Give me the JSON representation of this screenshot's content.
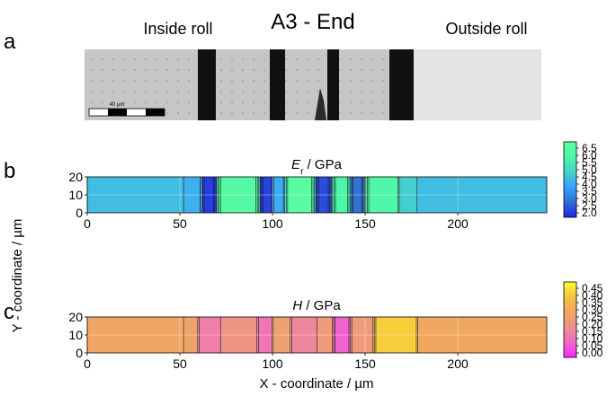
{
  "figure": {
    "title": "A3 - End",
    "left_label": "Inside roll",
    "right_label": "Outside roll",
    "panel_letters": [
      "a",
      "b",
      "c"
    ],
    "scale_bar_label": "40 µm",
    "y_axis_label": "Y - coordinate / µm",
    "x_axis_label": "X - coordinate / µm"
  },
  "chart_data": [
    {
      "type": "heatmap",
      "panel": "b",
      "title_symbol": "E",
      "title_subscript": "r",
      "title_unit": " / GPa",
      "x_ticks": [
        0,
        50,
        100,
        150,
        200
      ],
      "y_ticks": [
        0,
        10,
        20
      ],
      "xlim": [
        0,
        248
      ],
      "ylim": [
        0,
        20
      ],
      "grid": true,
      "colorbar_ticks": [
        "6.5",
        "6.0",
        "5.5",
        "5.0",
        "4.5",
        "4.0",
        "3.5",
        "3.0",
        "2.5",
        "2.0"
      ],
      "colorbar_range": [
        2.0,
        6.5
      ],
      "colormap": [
        "#2222ee",
        "#2f6fd0",
        "#3aa0ff",
        "#45d4c8",
        "#4cf5a8",
        "#60ffa0"
      ],
      "bands": [
        {
          "x": [
            0,
            52
          ],
          "value": 4.3
        },
        {
          "x": [
            52,
            62
          ],
          "value": 4.1
        },
        {
          "x": [
            62,
            70
          ],
          "value": 2.3
        },
        {
          "x": [
            70,
            93
          ],
          "value": 6.0
        },
        {
          "x": [
            93,
            100
          ],
          "value": 2.4
        },
        {
          "x": [
            100,
            107
          ],
          "value": 4.0
        },
        {
          "x": [
            107,
            123
          ],
          "value": 6.2
        },
        {
          "x": [
            123,
            132
          ],
          "value": 2.5
        },
        {
          "x": [
            132,
            142
          ],
          "value": 5.6
        },
        {
          "x": [
            142,
            150
          ],
          "value": 3.0
        },
        {
          "x": [
            150,
            168
          ],
          "value": 5.8
        },
        {
          "x": [
            168,
            178
          ],
          "value": 4.6
        },
        {
          "x": [
            178,
            248
          ],
          "value": 4.3
        }
      ]
    },
    {
      "type": "heatmap",
      "panel": "c",
      "title_symbol": "H",
      "title_subscript": "",
      "title_unit": " / GPa",
      "x_ticks": [
        0,
        50,
        100,
        150,
        200
      ],
      "y_ticks": [
        0,
        10,
        20
      ],
      "xlim": [
        0,
        248
      ],
      "ylim": [
        0,
        20
      ],
      "grid": true,
      "colorbar_ticks": [
        "0.45",
        "0.40",
        "0.35",
        "0.30",
        "0.25",
        "0.20",
        "0.15",
        "0.10",
        "0.05",
        "0.00"
      ],
      "colorbar_range": [
        0.0,
        0.45
      ],
      "colormap": [
        "#ff22ff",
        "#f06ac8",
        "#ee8f90",
        "#f0a860",
        "#f5c040",
        "#ffff30"
      ],
      "bands": [
        {
          "x": [
            0,
            52
          ],
          "value": 0.26
        },
        {
          "x": [
            52,
            60
          ],
          "value": 0.25
        },
        {
          "x": [
            60,
            72
          ],
          "value": 0.14
        },
        {
          "x": [
            72,
            92
          ],
          "value": 0.2
        },
        {
          "x": [
            92,
            100
          ],
          "value": 0.12
        },
        {
          "x": [
            100,
            110
          ],
          "value": 0.24
        },
        {
          "x": [
            110,
            124
          ],
          "value": 0.16
        },
        {
          "x": [
            124,
            133
          ],
          "value": 0.22
        },
        {
          "x": [
            133,
            142
          ],
          "value": 0.08
        },
        {
          "x": [
            142,
            155
          ],
          "value": 0.22
        },
        {
          "x": [
            155,
            178
          ],
          "value": 0.38
        },
        {
          "x": [
            178,
            248
          ],
          "value": 0.27
        }
      ]
    }
  ]
}
